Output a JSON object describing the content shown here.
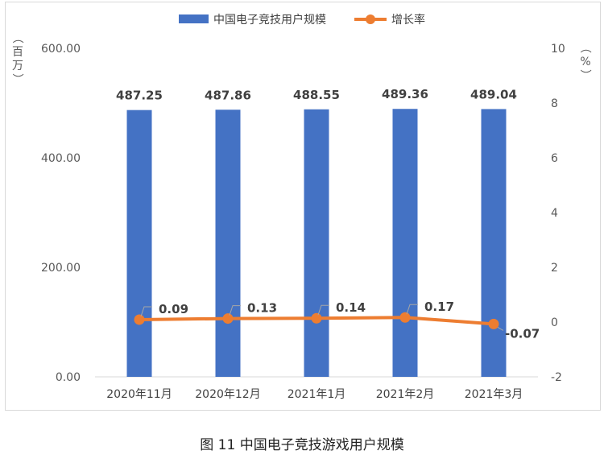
{
  "chart_data": {
    "type": "bar",
    "categories": [
      "2020年11月",
      "2020年12月",
      "2021年1月",
      "2021年2月",
      "2021年3月"
    ],
    "series": [
      {
        "name": "中国电子竞技用户规模",
        "type": "bar",
        "axis": "left",
        "values": [
          487.25,
          487.86,
          488.55,
          489.36,
          489.04
        ],
        "labels": [
          "487.25",
          "487.86",
          "488.55",
          "489.36",
          "489.04"
        ]
      },
      {
        "name": "增长率",
        "type": "line",
        "axis": "right",
        "values": [
          0.09,
          0.13,
          0.14,
          0.17,
          -0.07
        ],
        "labels": [
          "0.09",
          "0.13",
          "0.14",
          "0.17",
          "-0.07"
        ]
      }
    ],
    "y_left": {
      "unit": "（百万）",
      "range": [
        0,
        600
      ],
      "ticks": [
        "0.00",
        "200.00",
        "400.00",
        "600.00"
      ]
    },
    "y_right": {
      "unit": "（%）",
      "range": [
        -2,
        10
      ],
      "ticks": [
        "-2",
        "0",
        "2",
        "4",
        "6",
        "8",
        "10"
      ]
    },
    "legend_position": "top-center",
    "grid": false
  },
  "colors": {
    "bar": "#4472c4",
    "line": "#ed7d31"
  },
  "caption": "图 11  中国电子竞技游戏用户规模"
}
